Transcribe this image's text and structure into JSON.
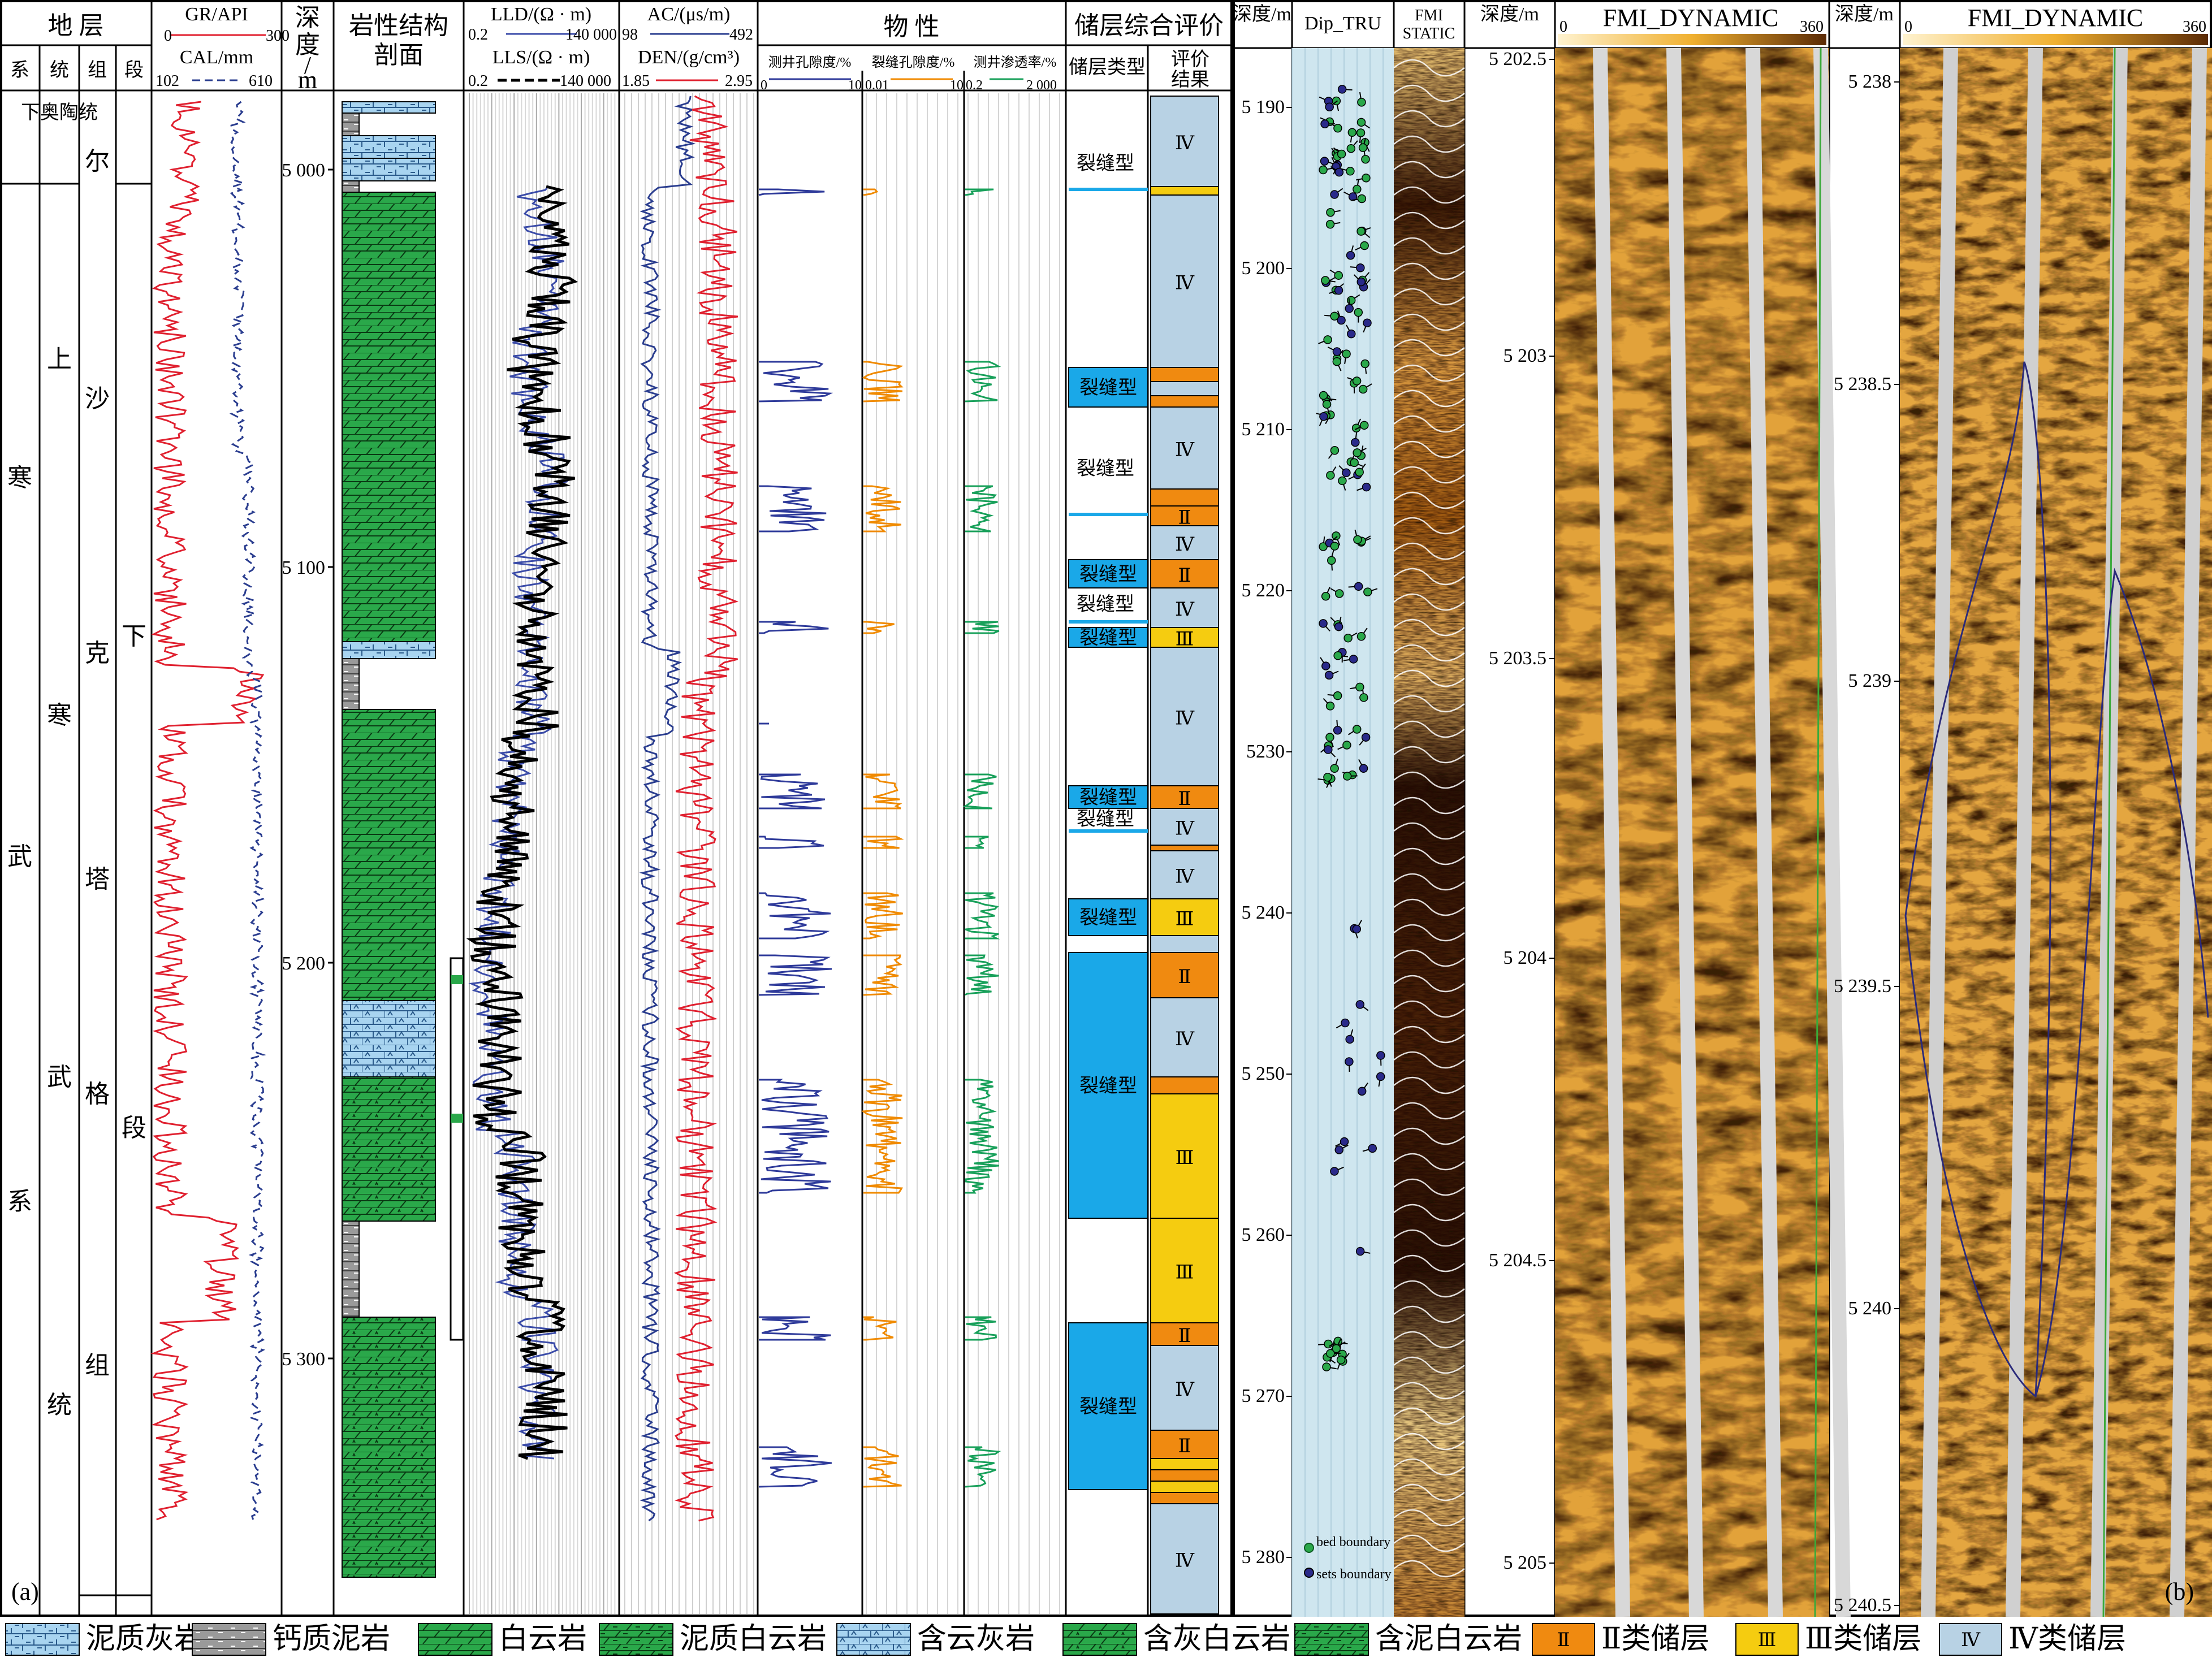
{
  "panel_a": {
    "label": "(a)",
    "strat_header": {
      "title": "地 层",
      "cols": [
        "系",
        "统",
        "组",
        "段"
      ]
    },
    "system": {
      "chars": [
        "寒",
        "武",
        "系"
      ]
    },
    "series": [
      {
        "text": "下奥陶统"
      },
      {
        "chars": [
          "上",
          "寒",
          "武",
          "统"
        ]
      }
    ],
    "formation": {
      "chars": [
        "沙",
        "克",
        "塔",
        "格",
        "组"
      ],
      "top_char": "尔"
    },
    "member": {
      "chars": [
        "下",
        "段"
      ]
    },
    "gr_header": {
      "curve1": "GR/API",
      "c1_min": "0",
      "c1_max": "300",
      "curve2": "CAL/mm",
      "c2_min": "102",
      "c2_max": "610"
    },
    "depth_header": {
      "chars": [
        "深",
        "度",
        "/",
        "m"
      ]
    },
    "depth_ticks": [
      "5 000",
      "5 100",
      "5 200",
      "5 300"
    ],
    "lith_header": {
      "line1": "岩性结构",
      "line2": "剖面"
    },
    "res_header": {
      "curve1": "LLD/(Ω · m)",
      "c1_min": "0.2",
      "c1_max": "140 000",
      "curve2": "LLS/(Ω · m)",
      "c2_min": "0.2",
      "c2_max": "140 000"
    },
    "ac_header": {
      "curve1": "AC/(μs/m)",
      "c1_min": "98",
      "c1_max": "492",
      "curve2": "DEN/(g/cm³)",
      "c2_min": "1.85",
      "c2_max": "2.95"
    },
    "phys_header": {
      "title": "物 性",
      "col1": "测井孔隙度/%",
      "col1_min": "0",
      "col1_max": "10",
      "col2": "裂缝孔隙度/%",
      "col2_min": "0.01",
      "col2_max": "10",
      "col3": "测井渗透率/%",
      "col3_min": "0.2",
      "col3_max": "2 000"
    },
    "eval_header": {
      "title": "储层综合评价",
      "col1": "储层类型",
      "col2_line1": "评价",
      "col2_line2": "结果"
    },
    "reservoir_type_label": "裂缝型",
    "grade_labels": {
      "II": "Ⅱ",
      "III": "Ⅲ",
      "IV": "Ⅳ"
    },
    "grade_sequence": [
      "Ⅳ",
      "Ⅲ",
      "Ⅳ",
      "Ⅱ",
      "Ⅳ",
      "Ⅱ",
      "Ⅳ",
      "Ⅱ",
      "Ⅱ",
      "Ⅳ",
      "Ⅱ",
      "Ⅳ",
      "Ⅲ",
      "Ⅳ",
      "Ⅱ",
      "Ⅳ",
      "Ⅱ",
      "Ⅳ",
      "Ⅲ",
      "Ⅳ",
      "Ⅱ",
      "Ⅳ",
      "Ⅱ",
      "Ⅲ",
      "Ⅲ",
      "Ⅱ",
      "Ⅳ",
      "Ⅱ",
      "Ⅲ",
      "Ⅱ",
      "Ⅲ",
      "Ⅱ",
      "Ⅳ"
    ]
  },
  "panel_b": {
    "label": "(b)",
    "dip_header": {
      "depth": "深度/m",
      "dip": "Dip_TRU",
      "static_line1": "FMI",
      "static_line2": "STATIC"
    },
    "dip_depth_ticks": [
      "5 190",
      "5 200",
      "5 210",
      "5 220",
      "5230",
      "5 240",
      "5 250",
      "5 260",
      "5 270",
      "5 280"
    ],
    "dip_legend": {
      "item1": "bed boundary",
      "item2": "sets boundary"
    },
    "image1": {
      "depth_header": "深度/m",
      "title": "FMI_DYNAMIC",
      "min": "0",
      "max": "360",
      "ticks": [
        "5 202.5",
        "5 203",
        "5 203.5",
        "5 204",
        "5 204.5",
        "5 205"
      ]
    },
    "image2": {
      "depth_header": "深度/m",
      "title": "FMI_DYNAMIC",
      "min": "0",
      "max": "360",
      "ticks": [
        "5 238",
        "5 238.5",
        "5 239",
        "5 239.5",
        "5 240",
        "5 240.5"
      ]
    }
  },
  "legend": {
    "items": [
      "泥质灰岩",
      "钙质泥岩",
      "白云岩",
      "泥质白云岩",
      "含云灰岩",
      "含灰白云岩",
      "含泥白云岩"
    ],
    "reservoirs": [
      {
        "mark": "Ⅱ",
        "label": "Ⅱ类储层"
      },
      {
        "mark": "Ⅲ",
        "label": "Ⅲ类储层"
      },
      {
        "mark": "Ⅳ",
        "label": "Ⅳ类储层"
      }
    ]
  },
  "colors": {
    "gr": "#e0202f",
    "cal": "#2a3d8f",
    "lld": "#000000",
    "lls": "#3a4ba8",
    "den": "#e0202f",
    "ac": "#2a3d8f",
    "phi": "#2e3a9a",
    "frac": "#f08a00",
    "perm": "#18a05a",
    "dolomite": "#2aa84a",
    "limestone": "#a8d4f0",
    "mudstone": "#9a9a9a",
    "grade2": "#f08a10",
    "grade3": "#f5cc10",
    "grade4": "#b8d2e4",
    "fracture_type": "#1aa8e8",
    "dip_bg": "#cfe6ef"
  }
}
